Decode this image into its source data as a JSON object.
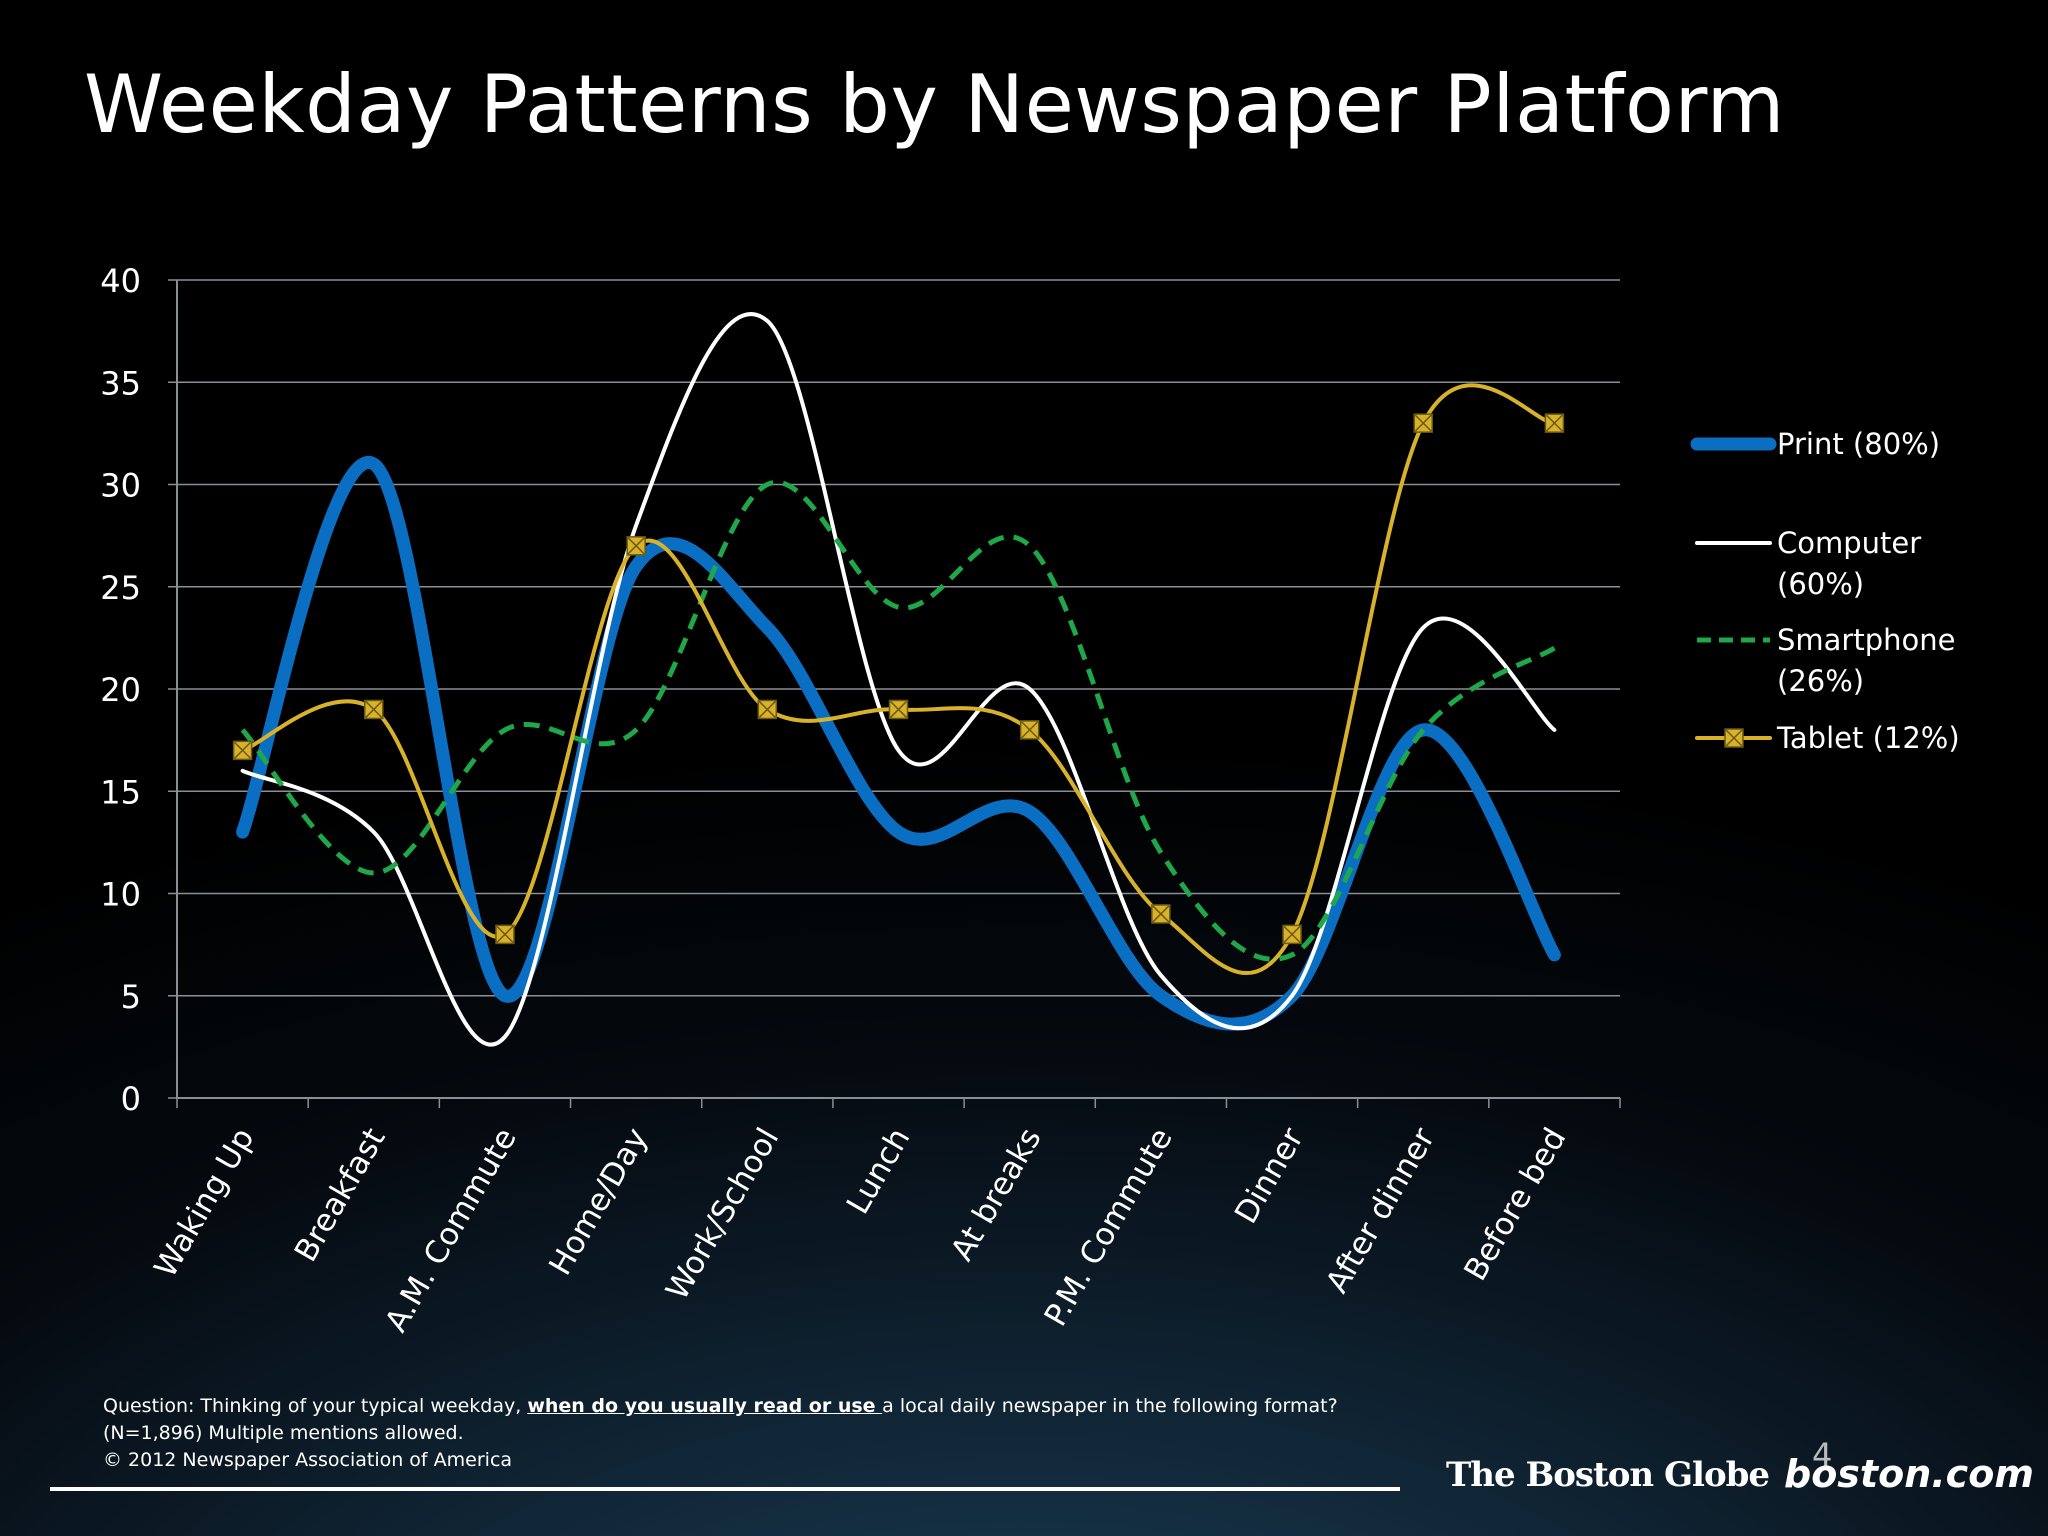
{
  "slide": {
    "title": "Weekday Patterns by Newspaper Platform",
    "page_number": "4",
    "notes": {
      "q_prefix": "Question: Thinking of your typical weekday, ",
      "q_emphasis": "when do you usually read or use ",
      "q_suffix": "a local daily newspaper in the following format?",
      "sample": "(N=1,896)  Multiple mentions allowed.",
      "copyright": "© 2012 Newspaper Association of America"
    },
    "logos": {
      "globe": "The Boston Globe",
      "boston_com": "boston.com"
    }
  },
  "chart_data": {
    "type": "line",
    "title": "",
    "xlabel": "",
    "ylabel": "",
    "ylim": [
      0,
      40
    ],
    "yticks": [
      0,
      5,
      10,
      15,
      20,
      25,
      30,
      35,
      40
    ],
    "grid": true,
    "legend_position": "right",
    "categories": [
      "Waking Up",
      "Breakfast",
      "A.M. Commute",
      "Home/Day",
      "Work/School",
      "Lunch",
      "At breaks",
      "P.M. Commute",
      "Dinner",
      "After dinner",
      "Before bed"
    ],
    "series": [
      {
        "name": "Print (80%)",
        "color": "#0a6fc2",
        "style": "thick",
        "values": [
          13,
          31,
          5,
          26,
          23,
          13,
          14,
          5,
          5,
          18,
          7
        ]
      },
      {
        "name": "Computer (60%)",
        "color": "#ffffff",
        "style": "solid",
        "values": [
          16,
          13,
          3,
          28,
          38,
          17,
          20,
          6,
          5,
          23,
          18
        ]
      },
      {
        "name": "Smartphone (26%)",
        "color": "#1fa84a",
        "style": "dashed",
        "values": [
          18,
          11,
          18,
          18,
          30,
          24,
          27,
          12,
          7,
          18,
          22
        ]
      },
      {
        "name": "Tablet (12%)",
        "color": "#d8b22a",
        "style": "marker",
        "values": [
          17,
          19,
          8,
          27,
          19,
          19,
          18,
          9,
          8,
          33,
          33
        ]
      }
    ]
  }
}
